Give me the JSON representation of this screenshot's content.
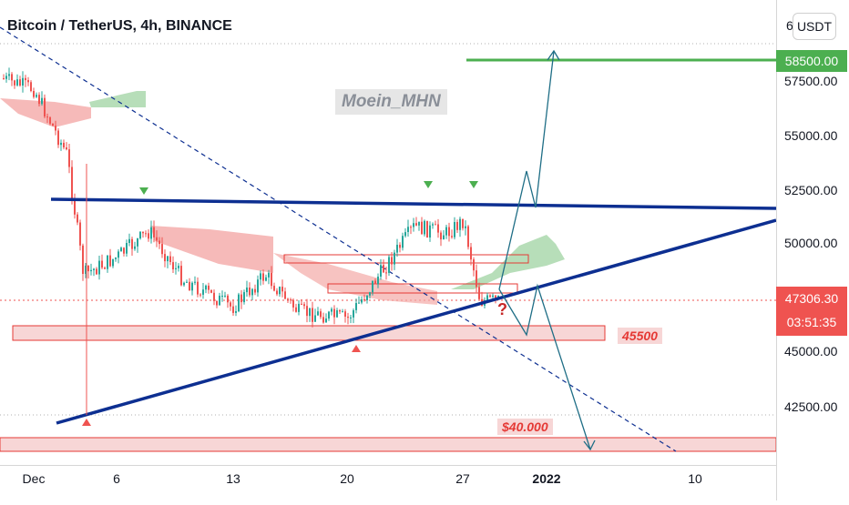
{
  "header": {
    "title": "Bitcoin / TetherUS, 4h, BINANCE",
    "currency_button": "USDT",
    "watermark": "Moein_MHN"
  },
  "price_axis": {
    "top_partial": "6",
    "ticks": [
      "57500.00",
      "55000.00",
      "52500.00",
      "50000.00",
      "45000.00",
      "42500.00"
    ],
    "target_badge": "58500.00",
    "last_price": "47306.30",
    "countdown": "03:51:35"
  },
  "time_axis": {
    "ticks": [
      {
        "label": "Dec",
        "bold": false
      },
      {
        "label": "6",
        "bold": false
      },
      {
        "label": "13",
        "bold": false
      },
      {
        "label": "20",
        "bold": false
      },
      {
        "label": "27",
        "bold": false
      },
      {
        "label": "2022",
        "bold": true
      },
      {
        "label": "10",
        "bold": false
      }
    ]
  },
  "annotations": {
    "support_label": "45500",
    "lower_target_label": "$40.000",
    "question_mark": "?"
  },
  "colors": {
    "bull": "#26a69a",
    "bear": "#ef5350",
    "trendline": "#0d2f91",
    "target_line": "#4caf50",
    "zone_fill": "#f7d6d6",
    "zone_border": "#e53935",
    "projection": "#1f6e86"
  },
  "chart_data": {
    "type": "candlestick",
    "symbol": "Bitcoin / TetherUS",
    "interval": "4h",
    "exchange": "BINANCE",
    "last_price": 47306.3,
    "levels": [
      {
        "label": "58500.00",
        "price": 58500
      },
      {
        "label": "45500",
        "price": 45500
      },
      {
        "label": "$40.000",
        "price": 40000
      }
    ],
    "approx_close_path": [
      {
        "date": "2021-11-29",
        "close": 57500
      },
      {
        "date": "2021-12-01",
        "close": 57000
      },
      {
        "date": "2021-12-03",
        "close": 54000
      },
      {
        "date": "2021-12-04",
        "close": 48500
      },
      {
        "date": "2021-12-06",
        "close": 49300
      },
      {
        "date": "2021-12-08",
        "close": 50500
      },
      {
        "date": "2021-12-10",
        "close": 48300
      },
      {
        "date": "2021-12-13",
        "close": 47000
      },
      {
        "date": "2021-12-15",
        "close": 48500
      },
      {
        "date": "2021-12-17",
        "close": 46800
      },
      {
        "date": "2021-12-20",
        "close": 46500
      },
      {
        "date": "2021-12-22",
        "close": 48600
      },
      {
        "date": "2021-12-24",
        "close": 50700
      },
      {
        "date": "2021-12-26",
        "close": 50400
      },
      {
        "date": "2021-12-27",
        "close": 51000
      },
      {
        "date": "2021-12-28",
        "close": 47300
      }
    ]
  }
}
